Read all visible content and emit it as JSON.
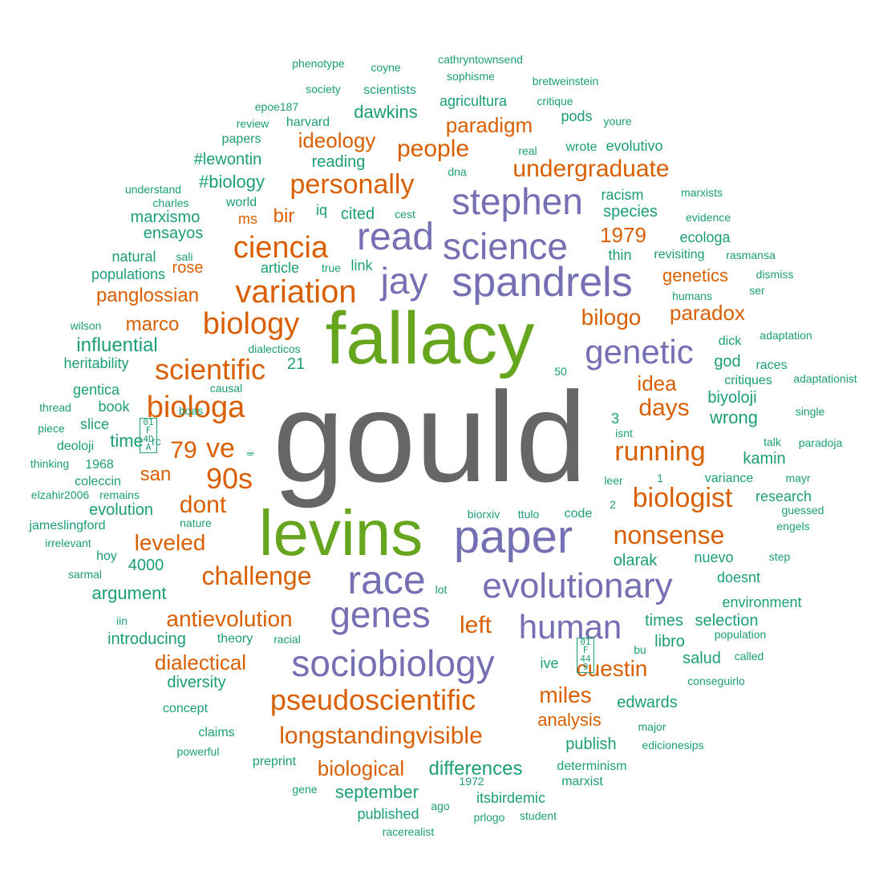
{
  "colors": {
    "gray": "#666666",
    "green": "#66a61e",
    "purple": "#7570b3",
    "orange": "#d95f02",
    "teal": "#1b9e77"
  },
  "words": [
    {
      "text": "gould",
      "color": "gray"
    },
    {
      "text": "fallacy",
      "color": "green"
    },
    {
      "text": "levins",
      "color": "green"
    },
    {
      "text": "paper",
      "color": "purple"
    },
    {
      "text": "spandrels",
      "color": "purple"
    },
    {
      "text": "stephen",
      "color": "purple"
    },
    {
      "text": "science",
      "color": "purple"
    },
    {
      "text": "read",
      "color": "purple"
    },
    {
      "text": "jay",
      "color": "purple"
    },
    {
      "text": "genetic",
      "color": "purple"
    },
    {
      "text": "race",
      "color": "purple"
    },
    {
      "text": "evolutionary",
      "color": "purple"
    },
    {
      "text": "genes",
      "color": "purple"
    },
    {
      "text": "human",
      "color": "purple"
    },
    {
      "text": "sociobiology",
      "color": "purple"
    },
    {
      "text": "ciencia",
      "color": "orange"
    },
    {
      "text": "variation",
      "color": "orange"
    },
    {
      "text": "biology",
      "color": "orange"
    },
    {
      "text": "scientific",
      "color": "orange"
    },
    {
      "text": "biologa",
      "color": "orange"
    },
    {
      "text": "personally",
      "color": "orange"
    },
    {
      "text": "undergraduate",
      "color": "orange"
    },
    {
      "text": "people",
      "color": "orange"
    },
    {
      "text": "ideology",
      "color": "orange"
    },
    {
      "text": "paradigm",
      "color": "orange"
    },
    {
      "text": "1979",
      "color": "orange"
    },
    {
      "text": "genetics",
      "color": "orange"
    },
    {
      "text": "paradox",
      "color": "orange"
    },
    {
      "text": "bilogo",
      "color": "orange"
    },
    {
      "text": "idea",
      "color": "orange"
    },
    {
      "text": "days",
      "color": "orange"
    },
    {
      "text": "running",
      "color": "orange"
    },
    {
      "text": "biologist",
      "color": "orange"
    },
    {
      "text": "nonsense",
      "color": "orange"
    },
    {
      "text": "ve",
      "color": "orange"
    },
    {
      "text": "79",
      "color": "orange"
    },
    {
      "text": "90s",
      "color": "orange"
    },
    {
      "text": "san",
      "color": "orange"
    },
    {
      "text": "dont",
      "color": "orange"
    },
    {
      "text": "leveled",
      "color": "orange"
    },
    {
      "text": "challenge",
      "color": "orange"
    },
    {
      "text": "antievolution",
      "color": "orange"
    },
    {
      "text": "left",
      "color": "orange"
    },
    {
      "text": "cuestin",
      "color": "orange"
    },
    {
      "text": "miles",
      "color": "orange"
    },
    {
      "text": "dialectical",
      "color": "orange"
    },
    {
      "text": "pseudoscientific",
      "color": "orange"
    },
    {
      "text": "analysis",
      "color": "orange"
    },
    {
      "text": "longstandingvisible",
      "color": "orange"
    },
    {
      "text": "biological",
      "color": "orange"
    },
    {
      "text": "marco",
      "color": "orange"
    },
    {
      "text": "panglossian",
      "color": "orange"
    },
    {
      "text": "rose",
      "color": "orange"
    },
    {
      "text": "bir",
      "color": "orange"
    },
    {
      "text": "ms",
      "color": "orange"
    },
    {
      "text": "phenotype",
      "color": "teal"
    },
    {
      "text": "coyne",
      "color": "teal"
    },
    {
      "text": "cathryntownsend",
      "color": "teal"
    },
    {
      "text": "society",
      "color": "teal"
    },
    {
      "text": "scientists",
      "color": "teal"
    },
    {
      "text": "sophisme",
      "color": "teal"
    },
    {
      "text": "bretweinstein",
      "color": "teal"
    },
    {
      "text": "epoe187",
      "color": "teal"
    },
    {
      "text": "agricultura",
      "color": "teal"
    },
    {
      "text": "critique",
      "color": "teal"
    },
    {
      "text": "review",
      "color": "teal"
    },
    {
      "text": "harvard",
      "color": "teal"
    },
    {
      "text": "dawkins",
      "color": "teal"
    },
    {
      "text": "pods",
      "color": "teal"
    },
    {
      "text": "youre",
      "color": "teal"
    },
    {
      "text": "papers",
      "color": "teal"
    },
    {
      "text": "real",
      "color": "teal"
    },
    {
      "text": "wrote",
      "color": "teal"
    },
    {
      "text": "evolutivo",
      "color": "teal"
    },
    {
      "text": "#lewontin",
      "color": "teal"
    },
    {
      "text": "reading",
      "color": "teal"
    },
    {
      "text": "dna",
      "color": "teal"
    },
    {
      "text": "#biology",
      "color": "teal"
    },
    {
      "text": "understand",
      "color": "teal"
    },
    {
      "text": "racism",
      "color": "teal"
    },
    {
      "text": "marxists",
      "color": "teal"
    },
    {
      "text": "charles",
      "color": "teal"
    },
    {
      "text": "world",
      "color": "teal"
    },
    {
      "text": "iq",
      "color": "teal"
    },
    {
      "text": "cited",
      "color": "teal"
    },
    {
      "text": "cest",
      "color": "teal"
    },
    {
      "text": "species",
      "color": "teal"
    },
    {
      "text": "marxismo",
      "color": "teal"
    },
    {
      "text": "evidence",
      "color": "teal"
    },
    {
      "text": "ensayos",
      "color": "teal"
    },
    {
      "text": "ecologa",
      "color": "teal"
    },
    {
      "text": "natural",
      "color": "teal"
    },
    {
      "text": "sali",
      "color": "teal"
    },
    {
      "text": "thin",
      "color": "teal"
    },
    {
      "text": "revisiting",
      "color": "teal"
    },
    {
      "text": "rasmansa",
      "color": "teal"
    },
    {
      "text": "article",
      "color": "teal"
    },
    {
      "text": "true",
      "color": "teal"
    },
    {
      "text": "link",
      "color": "teal"
    },
    {
      "text": "populations",
      "color": "teal"
    },
    {
      "text": "dismiss",
      "color": "teal"
    },
    {
      "text": "ser",
      "color": "teal"
    },
    {
      "text": "humans",
      "color": "teal"
    },
    {
      "text": "wilson",
      "color": "teal"
    },
    {
      "text": "adaptation",
      "color": "teal"
    },
    {
      "text": "influential",
      "color": "teal"
    },
    {
      "text": "dick",
      "color": "teal"
    },
    {
      "text": "dialecticos",
      "color": "teal"
    },
    {
      "text": "god",
      "color": "teal"
    },
    {
      "text": "races",
      "color": "teal"
    },
    {
      "text": "heritability",
      "color": "teal"
    },
    {
      "text": "21",
      "color": "teal"
    },
    {
      "text": "50",
      "color": "teal"
    },
    {
      "text": "critiques",
      "color": "teal"
    },
    {
      "text": "adaptationist",
      "color": "teal"
    },
    {
      "text": "gentica",
      "color": "teal"
    },
    {
      "text": "causal",
      "color": "teal"
    },
    {
      "text": "biyoloji",
      "color": "teal"
    },
    {
      "text": "thread",
      "color": "teal"
    },
    {
      "text": "book",
      "color": "teal"
    },
    {
      "text": "boas",
      "color": "teal"
    },
    {
      "text": "single",
      "color": "teal"
    },
    {
      "text": "wrong",
      "color": "teal"
    },
    {
      "text": "3",
      "color": "teal"
    },
    {
      "text": "piece",
      "color": "teal"
    },
    {
      "text": "slice",
      "color": "teal"
    },
    {
      "text": "isnt",
      "color": "teal"
    },
    {
      "text": "time",
      "color": "teal"
    },
    {
      "text": "rc",
      "color": "teal"
    },
    {
      "text": "talk",
      "color": "teal"
    },
    {
      "text": "paradoja",
      "color": "teal"
    },
    {
      "text": "deoloji",
      "color": "teal"
    },
    {
      "text": "kamin",
      "color": "teal"
    },
    {
      "text": "thinking",
      "color": "teal"
    },
    {
      "text": "1968",
      "color": "teal"
    },
    {
      "text": "1",
      "color": "teal"
    },
    {
      "text": "leer",
      "color": "teal"
    },
    {
      "text": "variance",
      "color": "teal"
    },
    {
      "text": "mayr",
      "color": "teal"
    },
    {
      "text": "coleccin",
      "color": "teal"
    },
    {
      "text": "elzahir2006",
      "color": "teal"
    },
    {
      "text": "remains",
      "color": "teal"
    },
    {
      "text": "research",
      "color": "teal"
    },
    {
      "text": "evolution",
      "color": "teal"
    },
    {
      "text": "2",
      "color": "teal"
    },
    {
      "text": "guessed",
      "color": "teal"
    },
    {
      "text": "biorxiv",
      "color": "teal"
    },
    {
      "text": "ttulo",
      "color": "teal"
    },
    {
      "text": "code",
      "color": "teal"
    },
    {
      "text": "jameslingford",
      "color": "teal"
    },
    {
      "text": "nature",
      "color": "teal"
    },
    {
      "text": "engels",
      "color": "teal"
    },
    {
      "text": "irrelevant",
      "color": "teal"
    },
    {
      "text": "hoy",
      "color": "teal"
    },
    {
      "text": "olarak",
      "color": "teal"
    },
    {
      "text": "nuevo",
      "color": "teal"
    },
    {
      "text": "step",
      "color": "teal"
    },
    {
      "text": "4000",
      "color": "teal"
    },
    {
      "text": "sarmal",
      "color": "teal"
    },
    {
      "text": "doesnt",
      "color": "teal"
    },
    {
      "text": "lot",
      "color": "teal"
    },
    {
      "text": "argument",
      "color": "teal"
    },
    {
      "text": "environment",
      "color": "teal"
    },
    {
      "text": "times",
      "color": "teal"
    },
    {
      "text": "selection",
      "color": "teal"
    },
    {
      "text": "iin",
      "color": "teal"
    },
    {
      "text": "introducing",
      "color": "teal"
    },
    {
      "text": "theory",
      "color": "teal"
    },
    {
      "text": "racial",
      "color": "teal"
    },
    {
      "text": "libro",
      "color": "teal"
    },
    {
      "text": "population",
      "color": "teal"
    },
    {
      "text": "bu",
      "color": "teal"
    },
    {
      "text": "called",
      "color": "teal"
    },
    {
      "text": "ive",
      "color": "teal"
    },
    {
      "text": "salud",
      "color": "teal"
    },
    {
      "text": "diversity",
      "color": "teal"
    },
    {
      "text": "conseguirlo",
      "color": "teal"
    },
    {
      "text": "concept",
      "color": "teal"
    },
    {
      "text": "edwards",
      "color": "teal"
    },
    {
      "text": "claims",
      "color": "teal"
    },
    {
      "text": "publish",
      "color": "teal"
    },
    {
      "text": "major",
      "color": "teal"
    },
    {
      "text": "powerful",
      "color": "teal"
    },
    {
      "text": "edicionesips",
      "color": "teal"
    },
    {
      "text": "preprint",
      "color": "teal"
    },
    {
      "text": "differences",
      "color": "teal"
    },
    {
      "text": "determinism",
      "color": "teal"
    },
    {
      "text": "1972",
      "color": "teal"
    },
    {
      "text": "marxist",
      "color": "teal"
    },
    {
      "text": "gene",
      "color": "teal"
    },
    {
      "text": "september",
      "color": "teal"
    },
    {
      "text": "itsbirdemic",
      "color": "teal"
    },
    {
      "text": "ago",
      "color": "teal"
    },
    {
      "text": "published",
      "color": "teal"
    },
    {
      "text": "prlogo",
      "color": "teal"
    },
    {
      "text": "student",
      "color": "teal"
    },
    {
      "text": "racerealist",
      "color": "teal"
    },
    {
      "text": "01F 4DA",
      "color": "teal",
      "symbol": true
    },
    {
      "text": "01F 449",
      "color": "teal",
      "symbol": true
    },
    {
      "text": "☕",
      "color": "teal"
    }
  ]
}
